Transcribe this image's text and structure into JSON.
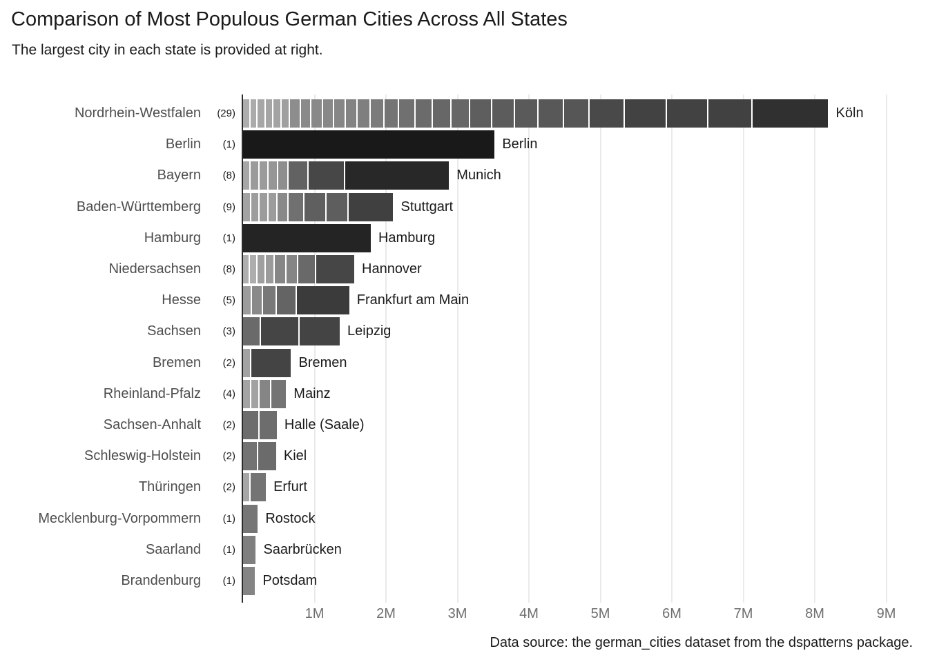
{
  "header": {
    "title": "Comparison of Most Populous German Cities Across All States",
    "subtitle": "The largest city in each state is provided at right."
  },
  "caption": "Data source: the german_cities dataset from the dspatterns package.",
  "colors": {
    "background": "#ffffff",
    "title": "#1a1a1a",
    "state_label": "#4d4d4d",
    "count_label": "#1a1a1a",
    "city_label": "#1a1a1a",
    "tick_label": "#6e6e6e",
    "axis_line": "#2b2b2b",
    "gridline": "#eaeaea",
    "segment_separator": "#ffffff"
  },
  "chart_data": {
    "type": "bar",
    "orientation": "horizontal",
    "stacked": true,
    "title": "Comparison of Most Populous German Cities Across All States",
    "subtitle": "The largest city in each state is provided at right.",
    "x_axis": {
      "ticks": [
        "1M",
        "2M",
        "3M",
        "4M",
        "5M",
        "6M",
        "7M",
        "8M",
        "9M"
      ],
      "tick_values_millions": [
        1,
        2,
        3,
        4,
        5,
        6,
        7,
        8,
        9
      ],
      "min_millions": 0,
      "max_millions": 9.18,
      "gridlines": "major-only"
    },
    "legend": "none",
    "color_scale": {
      "meaning": "darker segment = larger city population; each segment is one city stacked ascending",
      "ref_pop": 100000,
      "base_gray": 175,
      "exponent": -0.55,
      "min_gray": 20,
      "max_gray": 180
    },
    "rows": [
      {
        "state": "Nordrhein-Westfalen",
        "count_label": "(29)",
        "largest_city": "Köln",
        "total_millions": 8.19,
        "segments_pop": [
          102355,
          104595,
          109499,
          111366,
          114330,
          117143,
          148126,
          153896,
          155851,
          158726,
          163487,
          169278,
          179397,
          189044,
          210934,
          225144,
          245885,
          259996,
          260368,
          310039,
          318809,
          333090,
          350046,
          364742,
          491231,
          582624,
          586181,
          612178,
          1060582
        ]
      },
      {
        "state": "Berlin",
        "count_label": "(1)",
        "largest_city": "Berlin",
        "total_millions": 3.52,
        "segments_pop": [
          3520031
        ]
      },
      {
        "state": "Bayern",
        "count_label": "(8)",
        "largest_city": "Munich",
        "total_millions": 2.88,
        "segments_pop": [
          108336,
          124171,
          124873,
          132438,
          145465,
          286374,
          509975,
          1450381
        ]
      },
      {
        "state": "Baden-Württemberg",
        "count_label": "(9)",
        "largest_city": "Stuttgart",
        "total_millions": 2.1,
        "segments_pop": [
          114310,
          122247,
          122567,
          122636,
          156267,
          226393,
          305780,
          307755,
          623738
        ]
      },
      {
        "state": "Hamburg",
        "count_label": "(1)",
        "largest_city": "Hamburg",
        "total_millions": 1.79,
        "segments_pop": [
          1787408
        ]
      },
      {
        "state": "Niedersachsen",
        "count_label": "(8)",
        "largest_city": "Hannover",
        "total_millions": 1.56,
        "segments_pop": [
          101079,
          101667,
          118914,
          124151,
          162403,
          163830,
          251364,
          532163
        ]
      },
      {
        "state": "Hesse",
        "count_label": "(5)",
        "largest_city": "Frankfurt am Main",
        "total_millions": 1.49,
        "segments_pop": [
          123734,
          155353,
          197984,
          276218,
          732688
        ]
      },
      {
        "state": "Sachsen",
        "count_label": "(3)",
        "largest_city": "Leipzig",
        "total_millions": 1.35,
        "segments_pop": [
          248645,
          543825,
          560472
        ]
      },
      {
        "state": "Bremen",
        "count_label": "(2)",
        "largest_city": "Bremen",
        "total_millions": 0.67,
        "segments_pop": [
          114025,
          557464
        ]
      },
      {
        "state": "Rheinland-Pfalz",
        "count_label": "(4)",
        "largest_city": "Mainz",
        "total_millions": 0.6,
        "segments_pop": [
          112586,
          114914,
          164718,
          209779
        ]
      },
      {
        "state": "Sachsen-Anhalt",
        "count_label": "(2)",
        "largest_city": "Halle (Saale)",
        "total_millions": 0.47,
        "segments_pop": [
          235723,
          236991
        ]
      },
      {
        "state": "Schleswig-Holstein",
        "count_label": "(2)",
        "largest_city": "Kiel",
        "total_millions": 0.46,
        "segments_pop": [
          216253,
          246306
        ]
      },
      {
        "state": "Thüringen",
        "count_label": "(2)",
        "largest_city": "Erfurt",
        "total_millions": 0.32,
        "segments_pop": [
          109527,
          210118
        ]
      },
      {
        "state": "Mecklenburg-Vorpommern",
        "count_label": "(1)",
        "largest_city": "Rostock",
        "total_millions": 0.21,
        "segments_pop": [
          206011
        ]
      },
      {
        "state": "Saarland",
        "count_label": "(1)",
        "largest_city": "Saarbrücken",
        "total_millions": 0.18,
        "segments_pop": [
          178151
        ]
      },
      {
        "state": "Brandenburg",
        "count_label": "(1)",
        "largest_city": "Potsdam",
        "total_millions": 0.17,
        "segments_pop": [
          167745
        ]
      }
    ]
  }
}
